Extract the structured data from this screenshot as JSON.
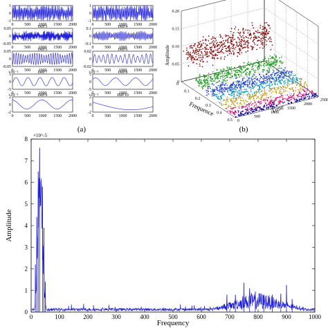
{
  "chart_data": [
    {
      "type": "line",
      "panel_label": "(a)",
      "subplots": [
        {
          "title": "",
          "ylim": [
            -1,
            1
          ],
          "ytick_labels": [
            "1",
            "0",
            "-1"
          ],
          "xtick_labels": [
            "0",
            "500",
            "1000",
            "1500",
            "2000"
          ],
          "exponent": "",
          "freq": 60,
          "amp": 0.9,
          "noise": 1.0,
          "mod": 0
        },
        {
          "title": "",
          "ylim": [
            -1,
            1
          ],
          "ytick_labels": [
            "1",
            "0",
            "-1"
          ],
          "xtick_labels": [
            "0",
            "500",
            "1000",
            "1500",
            "2000"
          ],
          "exponent": "",
          "freq": 55,
          "amp": 0.9,
          "noise": 0.9,
          "mod": 0
        },
        {
          "title": "IMF3",
          "ylim": [
            -0.05,
            0.05
          ],
          "ytick_labels": [
            "0.05",
            "0",
            "-0.05"
          ],
          "xtick_labels": [
            "0",
            "500",
            "1000",
            "1500",
            "2000"
          ],
          "exponent": "",
          "freq": 90,
          "amp": 0.5,
          "noise": 0.6,
          "mod": 1
        },
        {
          "title": "IMF4",
          "ylim": [
            -0.1,
            0.1
          ],
          "ytick_labels": [
            "0.1",
            "0",
            "-0.1"
          ],
          "xtick_labels": [
            "0",
            "500",
            "1000",
            "1500",
            "2000"
          ],
          "exponent": "",
          "freq": 45,
          "amp": 0.55,
          "noise": 0.3,
          "mod": 1
        },
        {
          "title": "IMF5",
          "ylim": [
            -0.05,
            0.05
          ],
          "ytick_labels": [
            "0.05",
            "0",
            "-0.05"
          ],
          "xtick_labels": [
            "0",
            "500",
            "1000",
            "1500",
            "2000"
          ],
          "exponent": "",
          "freq": 26,
          "amp": 0.8,
          "noise": 0.1,
          "mod": 1
        },
        {
          "title": "IMF6",
          "ylim": [
            -0.02,
            0.02
          ],
          "ytick_labels": [
            "0.02",
            "0",
            "-0.02"
          ],
          "xtick_labels": [
            "0",
            "500",
            "1000",
            "1500",
            "2000"
          ],
          "exponent": "",
          "freq": 14,
          "amp": 0.65,
          "noise": 0.05,
          "mod": 1
        },
        {
          "title": "IMF7",
          "ylim": [
            -5,
            5
          ],
          "ytick_labels": [
            "5",
            "0",
            "-5"
          ],
          "xtick_labels": [
            "0",
            "500",
            "1000",
            "1500",
            "2000"
          ],
          "exponent": "×10⁻³",
          "freq": 5,
          "amp": 0.55,
          "noise": 0.0,
          "mod": 0
        },
        {
          "title": "IMF8",
          "ylim": [
            -5,
            5
          ],
          "ytick_labels": [
            "5",
            "0",
            "-5"
          ],
          "xtick_labels": [
            "0",
            "500",
            "1000",
            "1500",
            "2000"
          ],
          "exponent": "×10⁻³",
          "freq": 3,
          "amp": 0.5,
          "noise": 0.0,
          "mod": 0
        },
        {
          "title": "IMF9",
          "ylim": [
            -2,
            2
          ],
          "ytick_labels": [
            "2",
            "0",
            "-2"
          ],
          "xtick_labels": [
            "0",
            "500",
            "1000",
            "1500",
            "2000"
          ],
          "exponent": "×10⁻³",
          "freq": 2,
          "amp": 0.6,
          "noise": 0.0,
          "mod": 0
        },
        {
          "title": "IMF10",
          "ylim": [
            -2,
            2
          ],
          "ytick_labels": [
            "2",
            "0",
            "-2"
          ],
          "xtick_labels": [
            "0",
            "500",
            "1000",
            "1500",
            "2000"
          ],
          "exponent": "×10⁻³",
          "freq": 0.5,
          "amp": 0.7,
          "noise": 0.0,
          "mod": 0
        }
      ],
      "color": "#1f1fd6"
    },
    {
      "type": "scatter",
      "panel_label": "(b)",
      "xlabel": "Frequence",
      "ylabel": "Time",
      "zlabel": "Amplitude",
      "freq_tick_labels": [
        "0",
        "0.1",
        "0.2",
        "0.3",
        "0.4",
        "0.5"
      ],
      "time_tick_labels": [
        "0",
        "500",
        "1000",
        "1500",
        "2000",
        "2500"
      ],
      "amp_tick_labels": [
        "0",
        "0.05",
        "0.10",
        "0.15",
        "0.20"
      ],
      "zlim": [
        0,
        0.2
      ],
      "series": [
        {
          "color": "#8b0f0f",
          "freq_center": 0.05,
          "amp_mean": 0.085,
          "amp_spread": 0.04,
          "count": 520
        },
        {
          "color": "#2aa02a",
          "freq_center": 0.15,
          "amp_mean": 0.03,
          "amp_spread": 0.02,
          "count": 420
        },
        {
          "color": "#2a4cd6",
          "freq_center": 0.25,
          "amp_mean": 0.02,
          "amp_spread": 0.015,
          "count": 360
        },
        {
          "color": "#17a6b8",
          "freq_center": 0.32,
          "amp_mean": 0.018,
          "amp_spread": 0.012,
          "count": 220
        },
        {
          "color": "#c9a21a",
          "freq_center": 0.38,
          "amp_mean": 0.012,
          "amp_spread": 0.01,
          "count": 200
        },
        {
          "color": "#d6207a",
          "freq_center": 0.45,
          "amp_mean": 0.006,
          "amp_spread": 0.005,
          "count": 220
        },
        {
          "color": "#1010a0",
          "freq_center": 0.5,
          "amp_mean": 0.004,
          "amp_spread": 0.004,
          "count": 160
        }
      ]
    },
    {
      "type": "line",
      "xlabel": "Frequency",
      "ylabel": "Amplitude",
      "exponent": "×10^-5",
      "xlim": [
        0,
        1000
      ],
      "ylim": [
        0,
        8
      ],
      "xticks": [
        0,
        100,
        200,
        300,
        400,
        500,
        600,
        700,
        800,
        900,
        1000
      ],
      "yticks": [
        0,
        1,
        2,
        3,
        4,
        5,
        6,
        7,
        8
      ],
      "peaks": [
        {
          "x": 30,
          "y": 7.6
        },
        {
          "x": 25,
          "y": 6.5
        },
        {
          "x": 40,
          "y": 5.8
        },
        {
          "x": 20,
          "y": 4.4
        },
        {
          "x": 45,
          "y": 3.9
        },
        {
          "x": 15,
          "y": 2.2
        },
        {
          "x": 50,
          "y": 1.4
        },
        {
          "x": 690,
          "y": 0.8
        },
        {
          "x": 720,
          "y": 0.8
        },
        {
          "x": 750,
          "y": 1.35
        },
        {
          "x": 770,
          "y": 1.1
        },
        {
          "x": 790,
          "y": 0.95
        },
        {
          "x": 820,
          "y": 0.75
        },
        {
          "x": 850,
          "y": 0.8
        },
        {
          "x": 880,
          "y": 0.85
        },
        {
          "x": 900,
          "y": 1.25
        },
        {
          "x": 920,
          "y": 0.6
        }
      ],
      "color": "#1f1fd6"
    }
  ]
}
